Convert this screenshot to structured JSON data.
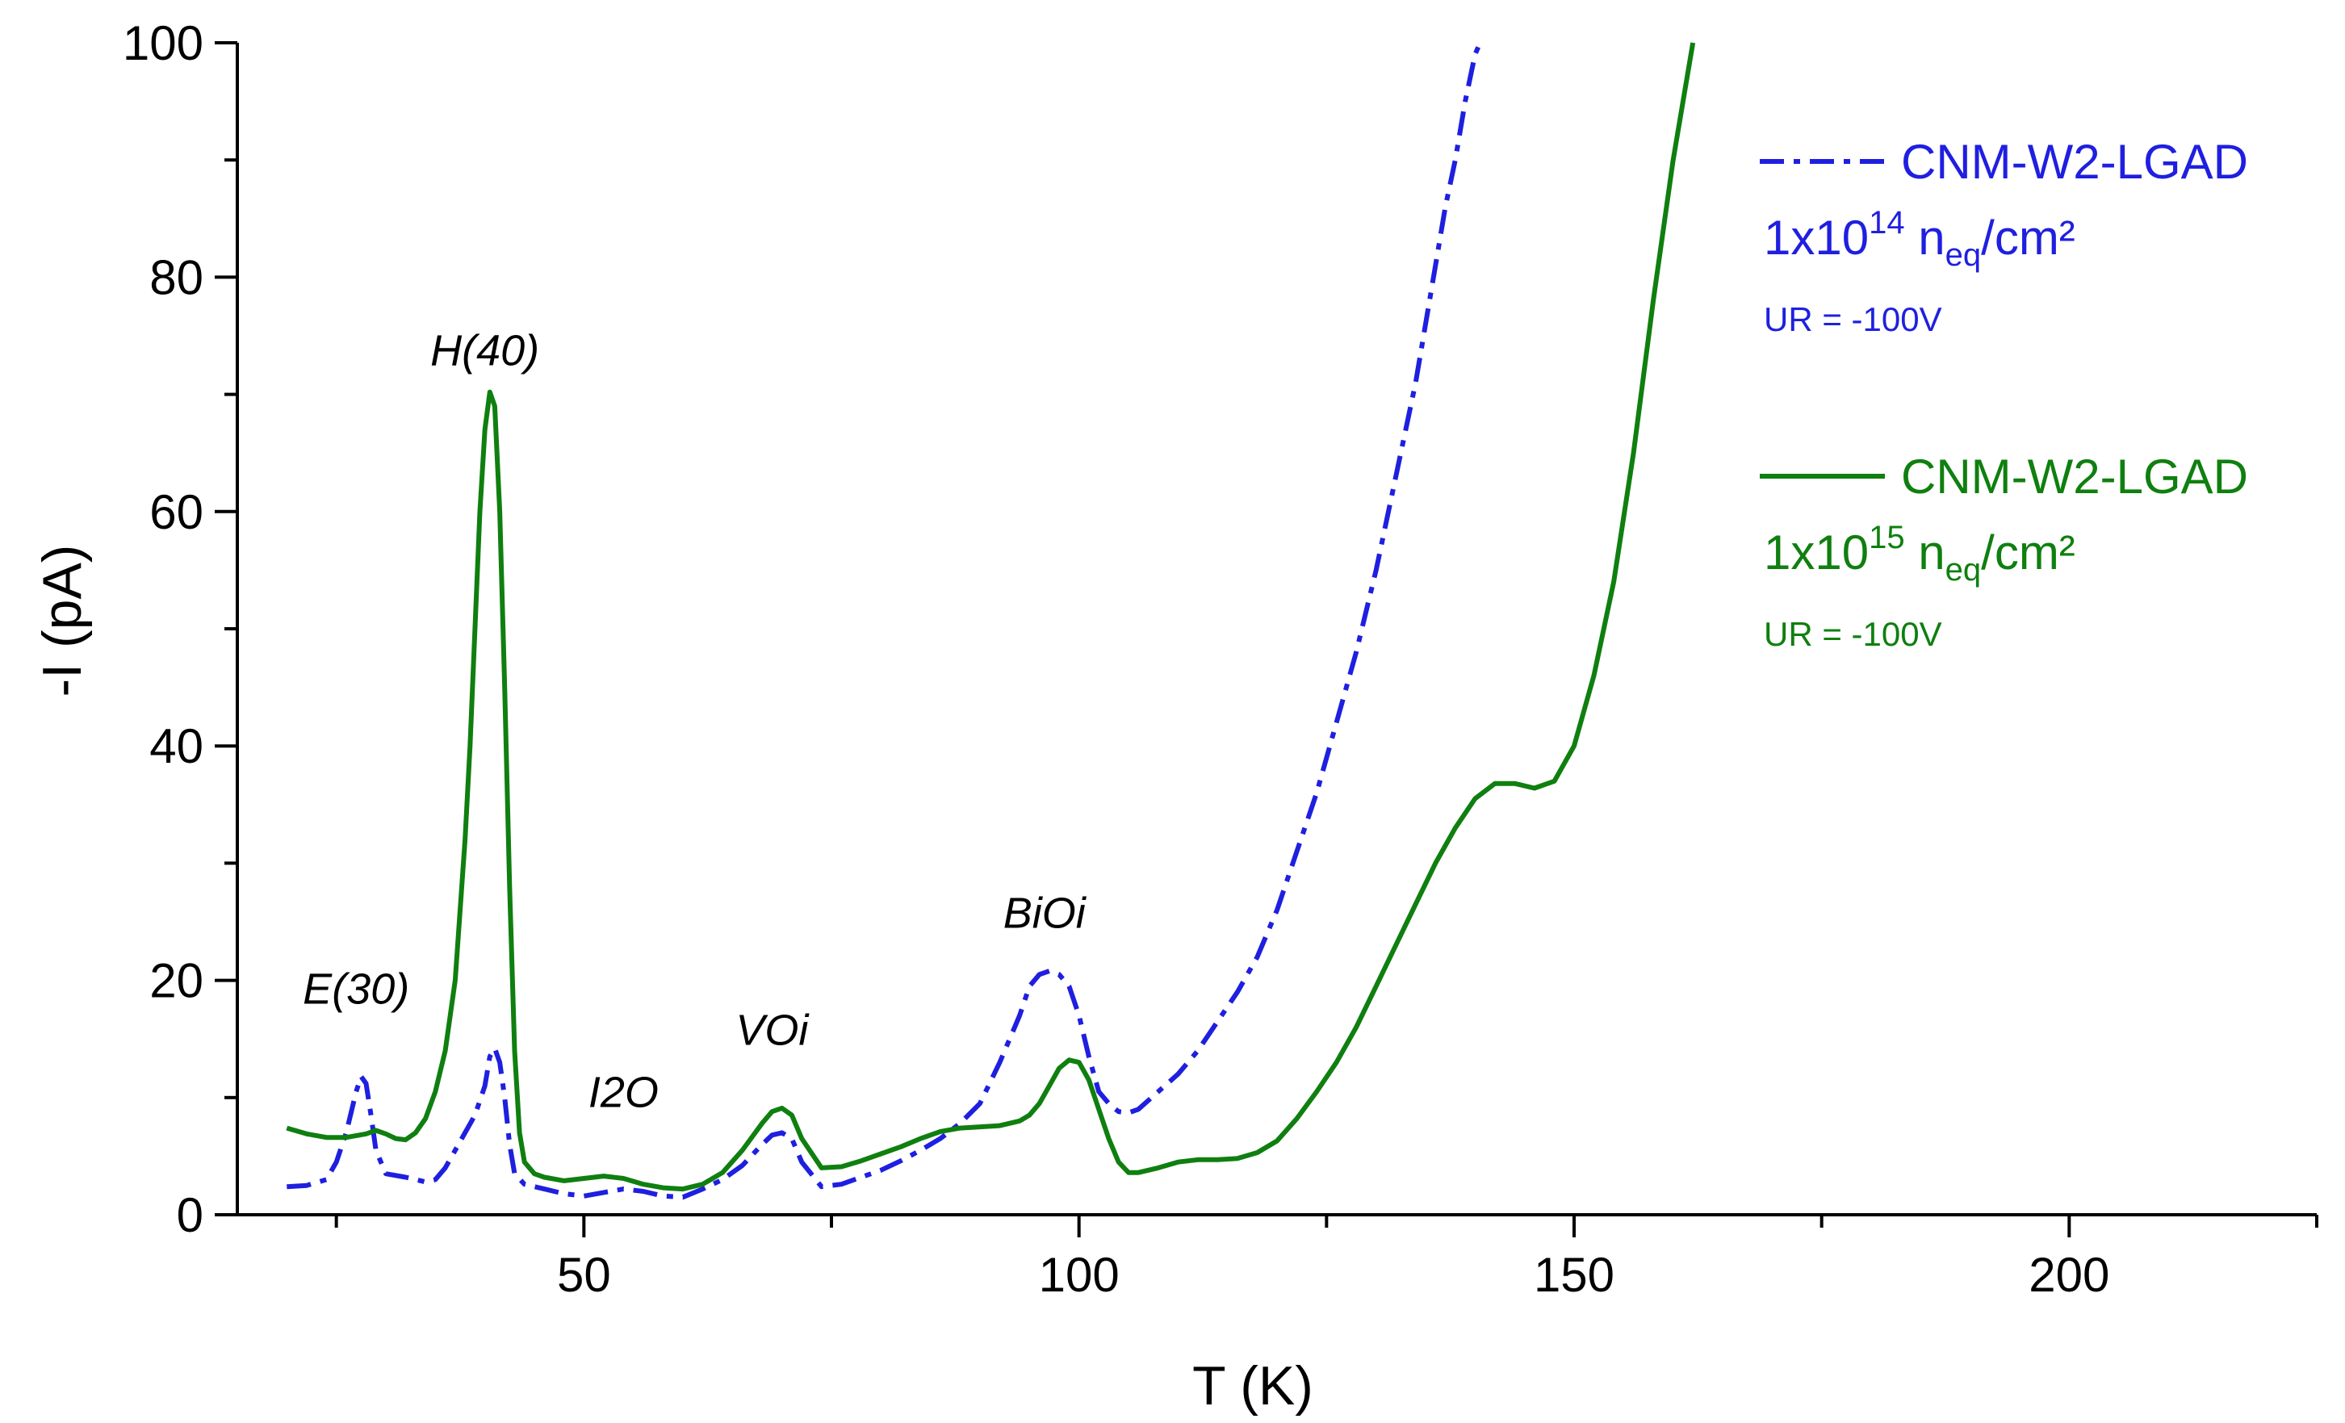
{
  "chart_data": {
    "type": "line",
    "title": "",
    "xlabel": "T (K)",
    "ylabel": "-I (pA)",
    "xlim": [
      15,
      225
    ],
    "ylim": [
      0,
      100
    ],
    "xticks": [
      50,
      100,
      150,
      200
    ],
    "xtick_labels": [
      "50",
      "100",
      "150",
      "200"
    ],
    "yticks": [
      0,
      20,
      40,
      60,
      80,
      100
    ],
    "ytick_labels": [
      "0",
      "20",
      "40",
      "60",
      "80",
      "100"
    ],
    "grid": false,
    "legend_position": "top-right",
    "series": [
      {
        "name": "CNM-W2-LGAD",
        "fluence_prefix": "1x10",
        "fluence_exp": "14",
        "fluence_unit_n": "n",
        "fluence_unit_sub": "eq",
        "fluence_unit_rest": "/cm²",
        "bias": "UR = -100V",
        "color": "#1f1fe0",
        "style": "dash-dot",
        "x": [
          20,
          22,
          24,
          25,
          26,
          27,
          27.5,
          28,
          28.5,
          29,
          30,
          32,
          34,
          35,
          36,
          37,
          38,
          39,
          40,
          40.5,
          41,
          41.5,
          42,
          42.5,
          43,
          44,
          46,
          48,
          50,
          52,
          54,
          56,
          58,
          60,
          62,
          64,
          66,
          68,
          69,
          70,
          71,
          72,
          74,
          76,
          78,
          80,
          82,
          84,
          86,
          88,
          90,
          92,
          94,
          95,
          96,
          97,
          98,
          99,
          100,
          101,
          102,
          103,
          104,
          105,
          106,
          108,
          110,
          112,
          114,
          116,
          118,
          120,
          122,
          124,
          126,
          128,
          130,
          132,
          134,
          136,
          137,
          138,
          139,
          140,
          140.5
        ],
        "y": [
          2.4,
          2.5,
          3.0,
          4.5,
          7.0,
          10.5,
          11.8,
          11.2,
          8.5,
          5.5,
          3.5,
          3.2,
          2.8,
          3.0,
          4.0,
          5.5,
          7.0,
          8.5,
          11.0,
          13.5,
          14.2,
          13.0,
          10.0,
          6.0,
          3.5,
          2.6,
          2.2,
          1.8,
          1.6,
          1.9,
          2.2,
          2.0,
          1.6,
          1.5,
          2.2,
          3.0,
          4.2,
          6.0,
          6.8,
          7.0,
          6.5,
          4.5,
          2.4,
          2.6,
          3.2,
          3.8,
          4.6,
          5.5,
          6.5,
          7.8,
          9.5,
          13.0,
          17.0,
          19.5,
          20.5,
          20.8,
          20.5,
          19.5,
          17.0,
          13.5,
          10.5,
          9.5,
          8.8,
          8.7,
          9.0,
          10.5,
          12.0,
          14.0,
          16.5,
          19.0,
          22.0,
          26.0,
          31.0,
          36.0,
          42.0,
          48.0,
          55.0,
          63.0,
          71.0,
          81.0,
          86.0,
          90.0,
          95.0,
          99.0,
          100.0
        ]
      },
      {
        "name": "CNM-W2-LGAD",
        "fluence_prefix": "1x10",
        "fluence_exp": "15",
        "fluence_unit_n": "n",
        "fluence_unit_sub": "eq",
        "fluence_unit_rest": "/cm²",
        "bias": "UR = -100V",
        "color": "#0f7f0f",
        "style": "solid",
        "x": [
          20,
          22,
          24,
          26,
          28,
          29,
          30,
          31,
          32,
          33,
          34,
          35,
          36,
          37,
          38,
          38.5,
          39,
          39.5,
          40,
          40.5,
          41,
          41.5,
          42,
          42.5,
          43,
          43.5,
          44,
          45,
          46,
          48,
          50,
          52,
          54,
          56,
          58,
          60,
          62,
          64,
          66,
          68,
          69,
          70,
          71,
          72,
          74,
          76,
          78,
          80,
          82,
          84,
          86,
          88,
          90,
          92,
          94,
          95,
          96,
          97,
          98,
          99,
          100,
          101,
          102,
          103,
          104,
          105,
          106,
          108,
          110,
          112,
          114,
          116,
          118,
          120,
          122,
          124,
          126,
          128,
          130,
          132,
          134,
          136,
          138,
          140,
          142,
          144,
          146,
          148,
          150,
          152,
          154,
          156,
          158,
          160,
          162
        ],
        "y": [
          7.4,
          6.9,
          6.6,
          6.6,
          6.9,
          7.2,
          6.9,
          6.5,
          6.4,
          7.0,
          8.2,
          10.5,
          14.0,
          20.0,
          32.0,
          40.0,
          50.0,
          60.0,
          67.0,
          70.2,
          69.0,
          60.0,
          45.0,
          28.0,
          14.0,
          7.0,
          4.5,
          3.5,
          3.2,
          2.9,
          3.1,
          3.3,
          3.1,
          2.6,
          2.3,
          2.2,
          2.6,
          3.6,
          5.5,
          7.8,
          8.8,
          9.1,
          8.5,
          6.5,
          4.0,
          4.1,
          4.6,
          5.2,
          5.8,
          6.5,
          7.1,
          7.4,
          7.5,
          7.6,
          8.0,
          8.5,
          9.5,
          11.0,
          12.5,
          13.2,
          13.0,
          11.5,
          9.0,
          6.5,
          4.5,
          3.6,
          3.6,
          4.0,
          4.5,
          4.7,
          4.7,
          4.8,
          5.3,
          6.3,
          8.2,
          10.5,
          13.0,
          16.0,
          19.5,
          23.0,
          26.5,
          30.0,
          33.0,
          35.5,
          36.8,
          36.8,
          36.4,
          37.0,
          40.0,
          46.0,
          54.0,
          65.0,
          78.0,
          90.0,
          100.0
        ]
      }
    ],
    "annotations": [
      {
        "text": "E(30)",
        "x": 27,
        "y": 18
      },
      {
        "text": "H(40)",
        "x": 40,
        "y": 72.5
      },
      {
        "text": "I2O",
        "x": 54,
        "y": 9.2
      },
      {
        "text": "VOi",
        "x": 69,
        "y": 14.5
      },
      {
        "text": "BiOi",
        "x": 96.5,
        "y": 24.5
      }
    ]
  }
}
